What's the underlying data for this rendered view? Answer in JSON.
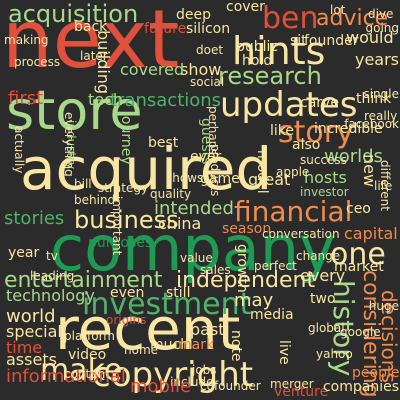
{
  "title": "word cloud",
  "colors": {
    "background": "#2b2b2b",
    "palette": {
      "red": "#e0503a",
      "orange": "#f08c4e",
      "cream": "#f8e6a2",
      "light_green": "#a8d98a",
      "green": "#4db36a",
      "dark_green": "#1f9a55"
    }
  },
  "words": [
    {
      "text": "next",
      "c": "red",
      "r": 0
    },
    {
      "text": "store",
      "c": "light_green",
      "r": 0
    },
    {
      "text": "acquired",
      "c": "cream",
      "r": 0
    },
    {
      "text": "company",
      "c": "dark_green",
      "r": 0
    },
    {
      "text": "recent",
      "c": "cream",
      "r": 0
    },
    {
      "text": "copyright",
      "c": "cream",
      "r": 0
    },
    {
      "text": "updates",
      "c": "cream",
      "r": 0
    },
    {
      "text": "hints",
      "c": "cream",
      "r": 0
    },
    {
      "text": "research",
      "c": "light_green",
      "r": 0
    },
    {
      "text": "acquisition",
      "c": "light_green",
      "r": 0
    },
    {
      "text": "ben",
      "c": "red",
      "r": 0
    },
    {
      "text": "advice",
      "c": "orange",
      "r": 0
    },
    {
      "text": "story",
      "c": "orange",
      "r": 0
    },
    {
      "text": "financial",
      "c": "orange",
      "r": 0
    },
    {
      "text": "business",
      "c": "cream",
      "r": 0
    },
    {
      "text": "one",
      "c": "cream",
      "r": 0
    },
    {
      "text": "investment",
      "c": "green",
      "r": 0
    },
    {
      "text": "make",
      "c": "cream",
      "r": 0
    },
    {
      "text": "independent",
      "c": "cream",
      "r": 0
    },
    {
      "text": "entertainment",
      "c": "light_green",
      "r": 0
    },
    {
      "text": "history",
      "c": "light_green",
      "r": 90
    },
    {
      "text": "considering",
      "c": "orange",
      "r": 90
    },
    {
      "text": "decisions",
      "c": "orange",
      "r": 90
    },
    {
      "text": "transactions",
      "c": "green",
      "r": 0
    },
    {
      "text": "intended",
      "c": "light_green",
      "r": 0
    },
    {
      "text": "technology",
      "c": "light_green",
      "r": 0
    },
    {
      "text": "world",
      "c": "cream",
      "r": 0
    },
    {
      "text": "special",
      "c": "cream",
      "r": 0
    },
    {
      "text": "time",
      "c": "red",
      "r": 0
    },
    {
      "text": "assets",
      "c": "cream",
      "r": 0
    },
    {
      "text": "informational",
      "c": "red",
      "r": 0
    },
    {
      "text": "capital",
      "c": "orange",
      "r": 0
    },
    {
      "text": "market",
      "c": "cream",
      "r": 0
    },
    {
      "text": "every",
      "c": "cream",
      "r": 0
    },
    {
      "text": "may",
      "c": "cream",
      "r": 0
    },
    {
      "text": "first",
      "c": "red",
      "r": 0
    },
    {
      "text": "tech",
      "c": "light_green",
      "r": 0
    },
    {
      "text": "stories",
      "c": "green",
      "r": 0
    },
    {
      "text": "china",
      "c": "cream",
      "r": 0
    },
    {
      "text": "purposes",
      "c": "dark_green",
      "r": 0
    },
    {
      "text": "season",
      "c": "orange",
      "r": 0
    },
    {
      "text": "growth",
      "c": "cream",
      "r": 90
    },
    {
      "text": "worlds",
      "c": "light_green",
      "r": 0
    },
    {
      "text": "hosts",
      "c": "light_green",
      "r": 0
    },
    {
      "text": "incredible",
      "c": "cream",
      "r": 0
    },
    {
      "text": "carve",
      "c": "cream",
      "r": 0
    },
    {
      "text": "think",
      "c": "cream",
      "r": 0
    },
    {
      "text": "years",
      "c": "cream",
      "r": 0
    },
    {
      "text": "would",
      "c": "cream",
      "r": 0
    },
    {
      "text": "public",
      "c": "cream",
      "r": 0
    },
    {
      "text": "hold",
      "c": "cream",
      "r": 0
    },
    {
      "text": "show",
      "c": "cream",
      "r": 0
    },
    {
      "text": "covered",
      "c": "light_green",
      "r": 0
    },
    {
      "text": "building",
      "c": "cream",
      "r": 90
    },
    {
      "text": "back",
      "c": "cream",
      "r": 0
    },
    {
      "text": "future",
      "c": "red",
      "r": 0
    },
    {
      "text": "silicon",
      "c": "cream",
      "r": 0
    },
    {
      "text": "deep",
      "c": "cream",
      "r": 0
    },
    {
      "text": "cover",
      "c": "cream",
      "r": 0
    },
    {
      "text": "sit",
      "c": "cream",
      "r": 0
    },
    {
      "text": "founder",
      "c": "cream",
      "r": 0
    },
    {
      "text": "dive",
      "c": "cream",
      "r": 0
    },
    {
      "text": "doet",
      "c": "cream",
      "r": 0
    },
    {
      "text": "like",
      "c": "cream",
      "r": 0
    },
    {
      "text": "also",
      "c": "cream",
      "r": 0
    },
    {
      "text": "great",
      "c": "cream",
      "r": 0
    },
    {
      "text": "new",
      "c": "cream",
      "r": 90
    },
    {
      "text": "apple",
      "c": "cream",
      "r": 0
    },
    {
      "text": "investor",
      "c": "light_green",
      "r": 0
    },
    {
      "text": "game",
      "c": "cream",
      "r": 0
    },
    {
      "text": "model",
      "c": "cream",
      "r": 90
    },
    {
      "text": "products",
      "c": "cream",
      "r": 90
    },
    {
      "text": "guests",
      "c": "light_green",
      "r": 90
    },
    {
      "text": "best",
      "c": "cream",
      "r": 0
    },
    {
      "text": "ever",
      "c": "cream",
      "r": 0
    },
    {
      "text": "industry",
      "c": "light_green",
      "r": 90
    },
    {
      "text": "journey",
      "c": "light_green",
      "r": 90
    },
    {
      "text": "bill",
      "c": "cream",
      "r": 0
    },
    {
      "text": "strategy",
      "c": "cream",
      "r": 0
    },
    {
      "text": "behind",
      "c": "cream",
      "r": 0
    },
    {
      "text": "still",
      "c": "cream",
      "r": 0
    },
    {
      "text": "even",
      "c": "cream",
      "r": 0
    },
    {
      "text": "past",
      "c": "cream",
      "r": 0
    },
    {
      "text": "much",
      "c": "cream",
      "r": 0
    },
    {
      "text": "mark",
      "c": "orange",
      "r": 0
    },
    {
      "text": "video",
      "c": "cream",
      "r": 0
    },
    {
      "text": "note",
      "c": "cream",
      "r": 90
    },
    {
      "text": "live",
      "c": "cream",
      "r": 90
    },
    {
      "text": "media",
      "c": "cream",
      "r": 0
    },
    {
      "text": "cofounder",
      "c": "cream",
      "r": 0
    },
    {
      "text": "merger",
      "c": "cream",
      "r": 0
    },
    {
      "text": "include",
      "c": "cream",
      "r": 0
    },
    {
      "text": "jobs",
      "c": "cream",
      "r": 0
    },
    {
      "text": "venture",
      "c": "red",
      "r": 0
    },
    {
      "text": "companies",
      "c": "cream",
      "r": 0
    },
    {
      "text": "people",
      "c": "orange",
      "r": 0
    },
    {
      "text": "mobile",
      "c": "red",
      "r": 0
    },
    {
      "text": "year",
      "c": "cream",
      "r": 0
    },
    {
      "text": "two",
      "c": "cream",
      "r": 0
    },
    {
      "text": "tv",
      "c": "cream",
      "r": 0
    },
    {
      "text": "change",
      "c": "cream",
      "r": 0
    },
    {
      "text": "conversation",
      "c": "cream",
      "r": 0
    },
    {
      "text": "platform",
      "c": "cream",
      "r": 0
    },
    {
      "text": "ceo",
      "c": "cream",
      "r": 0
    },
    {
      "text": "life",
      "c": "cream",
      "r": 0
    },
    {
      "text": "perfect",
      "c": "cream",
      "r": 0
    },
    {
      "text": "different",
      "c": "cream",
      "r": 90
    },
    {
      "text": "lot",
      "c": "cream",
      "r": 0
    },
    {
      "text": "going",
      "c": "cream",
      "r": 0
    },
    {
      "text": "perhaps",
      "c": "cream",
      "r": 90
    },
    {
      "text": "success",
      "c": "cream",
      "r": 0
    },
    {
      "text": "sales",
      "c": "cream",
      "r": 0
    },
    {
      "text": "value",
      "c": "cream",
      "r": 0
    },
    {
      "text": "quality",
      "c": "cream",
      "r": 0
    },
    {
      "text": "shows",
      "c": "cream",
      "r": 0
    },
    {
      "text": "huge",
      "c": "cream",
      "r": 0
    },
    {
      "text": "really",
      "c": "cream",
      "r": 0
    },
    {
      "text": "single",
      "c": "cream",
      "r": 0
    },
    {
      "text": "everything",
      "c": "cream",
      "r": 90
    },
    {
      "text": "later",
      "c": "cream",
      "r": 0
    },
    {
      "text": "social",
      "c": "cream",
      "r": 0
    },
    {
      "text": "making",
      "c": "cream",
      "r": 0
    },
    {
      "text": "process",
      "c": "cream",
      "r": 0
    },
    {
      "text": "actually",
      "c": "cream",
      "r": 90
    },
    {
      "text": "important",
      "c": "cream",
      "r": 90
    },
    {
      "text": "leading",
      "c": "cream",
      "r": 0
    },
    {
      "text": "origins",
      "c": "red",
      "r": 0
    },
    {
      "text": "global",
      "c": "cream",
      "r": 0
    },
    {
      "text": "yahoo",
      "c": "cream",
      "r": 0
    },
    {
      "text": "google",
      "c": "cream",
      "r": 0
    },
    {
      "text": "facebook",
      "c": "cream",
      "r": 0
    },
    {
      "text": "content",
      "c": "cream",
      "r": 0
    },
    {
      "text": "home",
      "c": "cream",
      "r": 0
    },
    {
      "text": "firm",
      "c": "cream",
      "r": 0
    }
  ]
}
